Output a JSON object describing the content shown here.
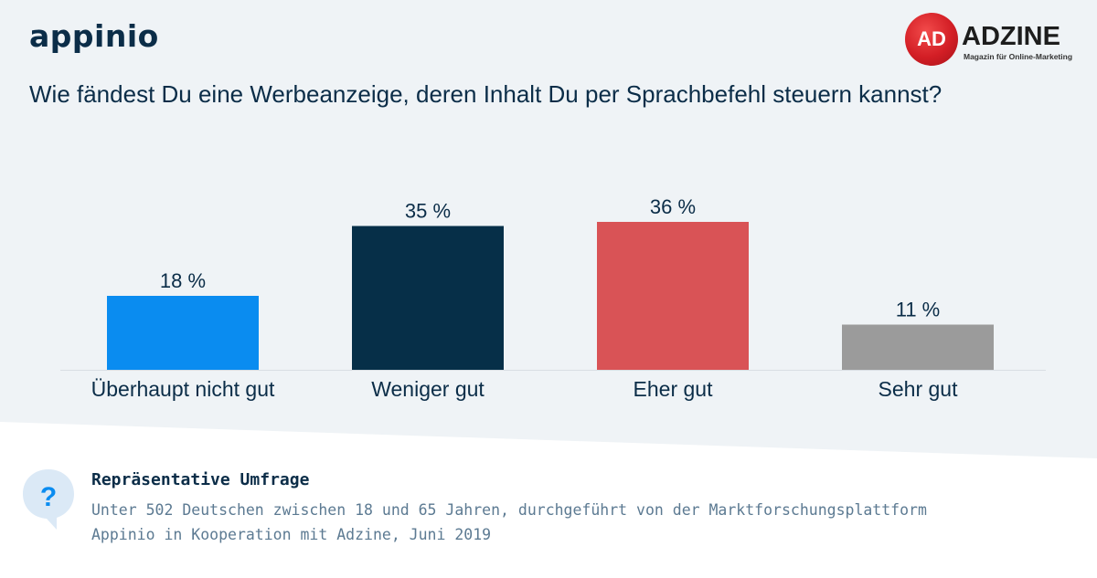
{
  "brand": {
    "appinio": "appinio",
    "adzine_mark": "AD",
    "adzine_name": "ADZINE",
    "adzine_tagline": "Magazin für Online-Marketing"
  },
  "question": "Wie fändest Du eine Werbeanzeige, deren Inhalt Du per Sprachbefehl steuern kannst?",
  "chart_data": {
    "type": "bar",
    "categories": [
      "Überhaupt nicht gut",
      "Weniger gut",
      "Eher gut",
      "Sehr gut"
    ],
    "values": [
      18,
      35,
      36,
      11
    ],
    "value_labels": [
      "18 %",
      "35 %",
      "36 %",
      "11 %"
    ],
    "colors": [
      "#0a8cf0",
      "#062f48",
      "#d95356",
      "#9b9b9b"
    ],
    "ylim": [
      0,
      40
    ],
    "grid": false,
    "title": "",
    "xlabel": "",
    "ylabel": ""
  },
  "footer": {
    "icon": "question-icon",
    "title": "Repräsentative Umfrage",
    "line1": "Unter 502 Deutschen zwischen 18 und 65 Jahren, durchgeführt von der Marktforschungsplattform",
    "line2": "Appinio in Kooperation mit Adzine, Juni 2019"
  },
  "colors": {
    "background": "#eff3f6",
    "navy": "#0b2d48"
  }
}
